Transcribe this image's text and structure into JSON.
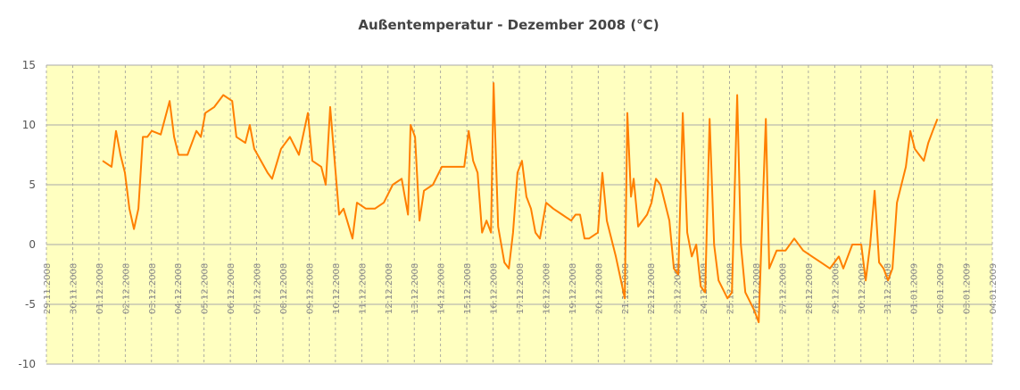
{
  "chart_data": {
    "type": "line",
    "title": "Außentemperatur - Dezember 2008 (°C)",
    "color": "#ff7f00",
    "grid": true,
    "ylim": [
      -10,
      15
    ],
    "yticks": [
      -10,
      -5,
      0,
      5,
      10,
      15
    ],
    "xlim": [
      0,
      36
    ],
    "xticks": [
      {
        "value": 0,
        "label": "29.11.2008"
      },
      {
        "value": 1,
        "label": "30.11.2008"
      },
      {
        "value": 2,
        "label": "01.12.2008"
      },
      {
        "value": 3,
        "label": "02.12.2008"
      },
      {
        "value": 4,
        "label": "03.12.2008"
      },
      {
        "value": 5,
        "label": "04.12.2008"
      },
      {
        "value": 6,
        "label": "05.12.2008"
      },
      {
        "value": 7,
        "label": "06.12.2008"
      },
      {
        "value": 8,
        "label": "07.12.2008"
      },
      {
        "value": 9,
        "label": "08.12.2008"
      },
      {
        "value": 10,
        "label": "09.12.2008"
      },
      {
        "value": 11,
        "label": "10.12.2008"
      },
      {
        "value": 12,
        "label": "11.12.2008"
      },
      {
        "value": 13,
        "label": "12.12.2008"
      },
      {
        "value": 14,
        "label": "13.12.2008"
      },
      {
        "value": 15,
        "label": "14.12.2008"
      },
      {
        "value": 16,
        "label": "15.12.2008"
      },
      {
        "value": 17,
        "label": "16.12.2008"
      },
      {
        "value": 18,
        "label": "17.12.2008"
      },
      {
        "value": 19,
        "label": "18.12.2008"
      },
      {
        "value": 20,
        "label": "19.12.2008"
      },
      {
        "value": 21,
        "label": "20.12.2008"
      },
      {
        "value": 22,
        "label": "21.12.2008"
      },
      {
        "value": 23,
        "label": "22.12.2008"
      },
      {
        "value": 24,
        "label": "23.12.2008"
      },
      {
        "value": 25,
        "label": "24.12.2008"
      },
      {
        "value": 26,
        "label": "25.12.2008"
      },
      {
        "value": 27,
        "label": "26.12.2008"
      },
      {
        "value": 28,
        "label": "27.12.2008"
      },
      {
        "value": 29,
        "label": "28.12.2008"
      },
      {
        "value": 30,
        "label": "29.12.2008"
      },
      {
        "value": 31,
        "label": "30.12.2008"
      },
      {
        "value": 32,
        "label": "31.12.2008"
      },
      {
        "value": 33,
        "label": "01.01.2009"
      },
      {
        "value": 34,
        "label": "02.01.2009"
      },
      {
        "value": 35,
        "label": "03.01.2009"
      },
      {
        "value": 36,
        "label": "04.01.2009"
      }
    ],
    "x": [
      2.14,
      2.48,
      2.65,
      2.82,
      2.99,
      3.16,
      3.33,
      3.5,
      3.67,
      3.84,
      4.01,
      4.35,
      4.69,
      4.86,
      5.03,
      5.37,
      5.71,
      5.88,
      6.05,
      6.39,
      6.73,
      7.07,
      7.23,
      7.57,
      7.74,
      7.91,
      8.42,
      8.59,
      8.93,
      9.27,
      9.61,
      9.95,
      10.12,
      10.46,
      10.63,
      10.8,
      10.97,
      11.14,
      11.31,
      11.65,
      11.82,
      12.16,
      12.5,
      12.84,
      13.18,
      13.52,
      13.76,
      13.86,
      14.03,
      14.2,
      14.37,
      14.71,
      15.05,
      15.56,
      15.9,
      16.07,
      16.24,
      16.41,
      16.58,
      16.75,
      16.92,
      17.02,
      17.19,
      17.43,
      17.6,
      17.76,
      17.93,
      18.1,
      18.27,
      18.44,
      18.61,
      18.78,
      19.02,
      19.29,
      19.63,
      19.97,
      20.14,
      20.31,
      20.48,
      20.65,
      20.99,
      21.16,
      21.33,
      21.67,
      22.01,
      22.11,
      22.25,
      22.35,
      22.52,
      22.86,
      23.03,
      23.2,
      23.37,
      23.54,
      23.71,
      23.88,
      24.05,
      24.22,
      24.39,
      24.56,
      24.73,
      24.9,
      25.07,
      25.24,
      25.41,
      25.58,
      25.92,
      26.09,
      26.29,
      26.43,
      26.6,
      26.94,
      27.11,
      27.24,
      27.38,
      27.51,
      27.79,
      28.13,
      28.46,
      28.8,
      29.14,
      29.48,
      29.82,
      29.99,
      30.16,
      30.33,
      30.67,
      31.01,
      31.18,
      31.35,
      31.52,
      31.69,
      31.86,
      32.03,
      32.2,
      32.37,
      32.54,
      32.71,
      32.88,
      33.05,
      33.22,
      33.39,
      33.56,
      33.73,
      33.91
    ],
    "values": [
      7,
      6.5,
      9.5,
      7.5,
      6,
      3,
      1.3,
      3,
      9,
      9,
      9.5,
      9.2,
      12,
      9,
      7.5,
      7.5,
      9.5,
      9,
      11,
      11.5,
      12.5,
      12,
      9,
      8.5,
      10,
      8,
      6,
      5.5,
      8,
      9,
      7.5,
      11,
      7,
      6.5,
      5,
      11.5,
      7,
      2.5,
      3,
      0.5,
      3.5,
      3,
      3,
      3.5,
      5,
      5.5,
      2.5,
      10,
      9,
      2,
      4.5,
      5,
      6.5,
      6.5,
      6.5,
      9.5,
      7,
      6,
      1,
      2,
      1,
      13.5,
      1.5,
      -1.5,
      -2,
      1,
      6,
      7,
      4,
      3,
      1,
      0.5,
      3.5,
      3,
      2.5,
      2,
      2.5,
      2.5,
      0.5,
      0.5,
      1,
      6,
      2,
      -1,
      -4.5,
      11,
      4,
      5.5,
      1.5,
      2.5,
      3.5,
      5.5,
      5,
      3.5,
      2,
      -2,
      -2.5,
      11,
      1,
      -1,
      0,
      -3.5,
      -4,
      10.5,
      0,
      -3,
      -4.5,
      -4,
      12.5,
      0,
      -4,
      -5.5,
      -6.5,
      2,
      10.5,
      -2,
      -0.5,
      -0.5,
      0.5,
      -0.5,
      -1,
      -1.5,
      -2,
      -1.5,
      -1,
      -2,
      0,
      0,
      -3,
      0,
      4.5,
      -1.5,
      -2,
      -3,
      -2,
      3.5,
      5,
      6.5,
      9.5,
      8,
      7.5,
      7,
      8.5,
      9.5,
      10.5
    ]
  }
}
